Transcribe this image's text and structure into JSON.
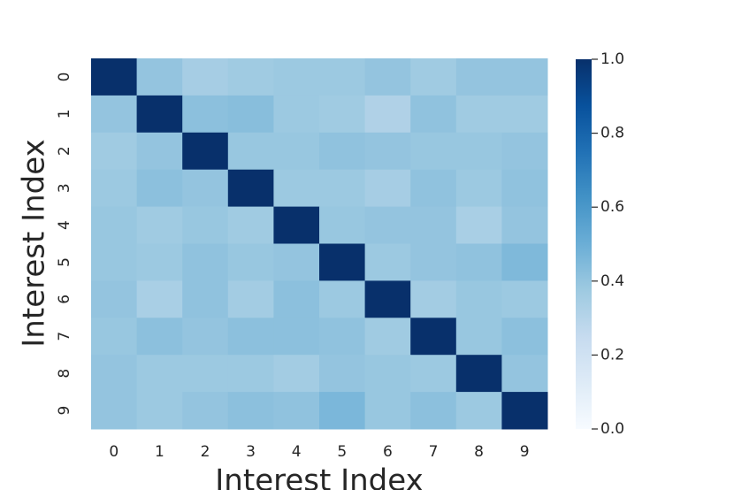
{
  "chart_data": {
    "type": "heatmap",
    "x_label": "Interest Index",
    "y_label": "Interest Index",
    "x_categories": [
      "0",
      "1",
      "2",
      "3",
      "4",
      "5",
      "6",
      "7",
      "8",
      "9"
    ],
    "y_categories": [
      "0",
      "1",
      "2",
      "3",
      "4",
      "5",
      "6",
      "7",
      "8",
      "9"
    ],
    "values": [
      [
        1,
        0.4,
        0.35,
        0.37,
        0.38,
        0.38,
        0.4,
        0.37,
        0.4,
        0.4
      ],
      [
        0.4,
        1,
        0.42,
        0.43,
        0.38,
        0.37,
        0.32,
        0.41,
        0.37,
        0.37
      ],
      [
        0.37,
        0.4,
        1,
        0.39,
        0.39,
        0.41,
        0.4,
        0.39,
        0.39,
        0.4
      ],
      [
        0.38,
        0.42,
        0.4,
        1,
        0.38,
        0.38,
        0.35,
        0.41,
        0.38,
        0.41
      ],
      [
        0.39,
        0.37,
        0.39,
        0.37,
        1,
        0.39,
        0.4,
        0.4,
        0.34,
        0.4
      ],
      [
        0.39,
        0.38,
        0.41,
        0.39,
        0.4,
        1,
        0.38,
        0.4,
        0.41,
        0.45
      ],
      [
        0.4,
        0.34,
        0.41,
        0.36,
        0.42,
        0.38,
        1,
        0.36,
        0.39,
        0.38
      ],
      [
        0.39,
        0.42,
        0.4,
        0.42,
        0.42,
        0.41,
        0.37,
        1,
        0.39,
        0.42
      ],
      [
        0.4,
        0.38,
        0.38,
        0.38,
        0.36,
        0.4,
        0.39,
        0.38,
        1,
        0.4
      ],
      [
        0.4,
        0.38,
        0.4,
        0.42,
        0.41,
        0.46,
        0.39,
        0.42,
        0.38,
        1
      ]
    ],
    "colormap": "Blues",
    "clim": [
      0,
      1
    ],
    "cticks": [
      {
        "value": 0,
        "label": "0.0"
      },
      {
        "value": 0.2,
        "label": "0.2"
      },
      {
        "value": 0.4,
        "label": "0.4"
      },
      {
        "value": 0.6,
        "label": "0.6"
      },
      {
        "value": 0.8,
        "label": "0.8"
      },
      {
        "value": 1,
        "label": "1.0"
      }
    ]
  }
}
